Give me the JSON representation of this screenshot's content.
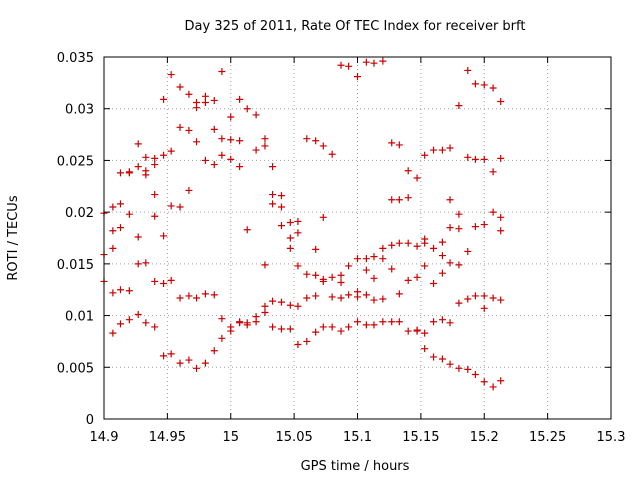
{
  "chart_data": {
    "type": "scatter",
    "title": "Day 325 of 2011, Rate Of TEC Index for receiver brft",
    "xlabel": "GPS time / hours",
    "ylabel": "ROTI / TECUs",
    "xlim": [
      14.9,
      15.3
    ],
    "ylim": [
      0,
      0.035
    ],
    "x_ticks": [
      14.9,
      14.95,
      15.0,
      15.05,
      15.1,
      15.15,
      15.2,
      15.25,
      15.3
    ],
    "x_tick_labels": [
      "14.9",
      "14.95",
      "15",
      "15.05",
      "15.1",
      "15.15",
      "15.2",
      "15.25",
      "15.3"
    ],
    "y_ticks": [
      0,
      0.005,
      0.01,
      0.015,
      0.02,
      0.025,
      0.03,
      0.035
    ],
    "y_tick_labels": [
      "0",
      "0.005",
      "0.01",
      "0.015",
      "0.02",
      "0.025",
      "0.03",
      "0.035"
    ],
    "grid": true,
    "marker": "+",
    "marker_color": "#cc0000",
    "series": [
      {
        "name": "brft",
        "points": [
          [
            14.9,
            0.0159
          ],
          [
            14.9,
            0.0199
          ],
          [
            14.9,
            0.0133
          ],
          [
            14.907,
            0.0205
          ],
          [
            14.907,
            0.0165
          ],
          [
            14.907,
            0.0182
          ],
          [
            14.907,
            0.0122
          ],
          [
            14.907,
            0.0083
          ],
          [
            14.913,
            0.0238
          ],
          [
            14.913,
            0.0208
          ],
          [
            14.913,
            0.0185
          ],
          [
            14.913,
            0.0125
          ],
          [
            14.913,
            0.0092
          ],
          [
            14.92,
            0.0239
          ],
          [
            14.92,
            0.0238
          ],
          [
            14.92,
            0.0198
          ],
          [
            14.92,
            0.0124
          ],
          [
            14.92,
            0.0096
          ],
          [
            14.927,
            0.0266
          ],
          [
            14.927,
            0.0244
          ],
          [
            14.927,
            0.0176
          ],
          [
            14.927,
            0.015
          ],
          [
            14.927,
            0.0101
          ],
          [
            14.933,
            0.0253
          ],
          [
            14.933,
            0.024
          ],
          [
            14.933,
            0.0236
          ],
          [
            14.933,
            0.0151
          ],
          [
            14.933,
            0.0093
          ],
          [
            14.94,
            0.0252
          ],
          [
            14.94,
            0.0246
          ],
          [
            14.94,
            0.0217
          ],
          [
            14.94,
            0.0196
          ],
          [
            14.94,
            0.0133
          ],
          [
            14.94,
            0.0089
          ],
          [
            14.947,
            0.0309
          ],
          [
            14.947,
            0.0255
          ],
          [
            14.947,
            0.0177
          ],
          [
            14.947,
            0.0131
          ],
          [
            14.947,
            0.0061
          ],
          [
            14.953,
            0.0333
          ],
          [
            14.953,
            0.0259
          ],
          [
            14.953,
            0.0206
          ],
          [
            14.953,
            0.0134
          ],
          [
            14.953,
            0.0063
          ],
          [
            14.96,
            0.0321
          ],
          [
            14.96,
            0.0282
          ],
          [
            14.96,
            0.0205
          ],
          [
            14.96,
            0.0117
          ],
          [
            14.96,
            0.0054
          ],
          [
            14.967,
            0.0314
          ],
          [
            14.967,
            0.0279
          ],
          [
            14.967,
            0.0221
          ],
          [
            14.967,
            0.0119
          ],
          [
            14.967,
            0.0057
          ],
          [
            14.973,
            0.0306
          ],
          [
            14.973,
            0.0301
          ],
          [
            14.973,
            0.0268
          ],
          [
            14.973,
            0.0117
          ],
          [
            14.973,
            0.0049
          ],
          [
            14.98,
            0.0312
          ],
          [
            14.98,
            0.0306
          ],
          [
            14.98,
            0.025
          ],
          [
            14.98,
            0.0121
          ],
          [
            14.98,
            0.0054
          ],
          [
            14.987,
            0.0308
          ],
          [
            14.987,
            0.028
          ],
          [
            14.987,
            0.0246
          ],
          [
            14.987,
            0.012
          ],
          [
            14.987,
            0.0066
          ],
          [
            14.993,
            0.0336
          ],
          [
            14.993,
            0.0271
          ],
          [
            14.993,
            0.0255
          ],
          [
            14.993,
            0.0097
          ],
          [
            14.993,
            0.0078
          ],
          [
            15.0,
            0.0292
          ],
          [
            15.0,
            0.027
          ],
          [
            15.0,
            0.0251
          ],
          [
            15.0,
            0.0089
          ],
          [
            15.0,
            0.0085
          ],
          [
            15.007,
            0.0309
          ],
          [
            15.007,
            0.0269
          ],
          [
            15.007,
            0.0244
          ],
          [
            15.007,
            0.0094
          ],
          [
            15.007,
            0.0093
          ],
          [
            15.013,
            0.03
          ],
          [
            15.013,
            0.0183
          ],
          [
            15.013,
            0.0093
          ],
          [
            15.013,
            0.0091
          ],
          [
            15.02,
            0.0294
          ],
          [
            15.02,
            0.026
          ],
          [
            15.02,
            0.0099
          ],
          [
            15.02,
            0.0094
          ],
          [
            15.027,
            0.0271
          ],
          [
            15.027,
            0.0264
          ],
          [
            15.027,
            0.0149
          ],
          [
            15.027,
            0.0109
          ],
          [
            15.027,
            0.0103
          ],
          [
            15.033,
            0.0244
          ],
          [
            15.033,
            0.0217
          ],
          [
            15.033,
            0.0208
          ],
          [
            15.033,
            0.0114
          ],
          [
            15.033,
            0.0089
          ],
          [
            15.04,
            0.0216
          ],
          [
            15.04,
            0.0205
          ],
          [
            15.04,
            0.0187
          ],
          [
            15.04,
            0.0113
          ],
          [
            15.04,
            0.0087
          ],
          [
            15.047,
            0.019
          ],
          [
            15.047,
            0.0175
          ],
          [
            15.047,
            0.0165
          ],
          [
            15.047,
            0.011
          ],
          [
            15.047,
            0.0087
          ],
          [
            15.053,
            0.0191
          ],
          [
            15.053,
            0.018
          ],
          [
            15.053,
            0.0148
          ],
          [
            15.053,
            0.0109
          ],
          [
            15.053,
            0.0072
          ],
          [
            15.06,
            0.0271
          ],
          [
            15.06,
            0.014
          ],
          [
            15.06,
            0.0117
          ],
          [
            15.06,
            0.0075
          ],
          [
            15.067,
            0.0269
          ],
          [
            15.067,
            0.0164
          ],
          [
            15.067,
            0.0139
          ],
          [
            15.067,
            0.0119
          ],
          [
            15.067,
            0.0084
          ],
          [
            15.073,
            0.0264
          ],
          [
            15.073,
            0.0195
          ],
          [
            15.073,
            0.0135
          ],
          [
            15.073,
            0.0133
          ],
          [
            15.073,
            0.0089
          ],
          [
            15.08,
            0.0256
          ],
          [
            15.08,
            0.0137
          ],
          [
            15.08,
            0.0118
          ],
          [
            15.08,
            0.0089
          ],
          [
            15.087,
            0.0342
          ],
          [
            15.087,
            0.0139
          ],
          [
            15.087,
            0.0132
          ],
          [
            15.087,
            0.0117
          ],
          [
            15.087,
            0.0085
          ],
          [
            15.093,
            0.0341
          ],
          [
            15.093,
            0.0148
          ],
          [
            15.093,
            0.012
          ],
          [
            15.093,
            0.0089
          ],
          [
            15.1,
            0.0331
          ],
          [
            15.1,
            0.0155
          ],
          [
            15.1,
            0.0123
          ],
          [
            15.1,
            0.0118
          ],
          [
            15.1,
            0.0094
          ],
          [
            15.107,
            0.0345
          ],
          [
            15.107,
            0.0155
          ],
          [
            15.107,
            0.0144
          ],
          [
            15.107,
            0.012
          ],
          [
            15.107,
            0.0091
          ],
          [
            15.113,
            0.0344
          ],
          [
            15.113,
            0.0157
          ],
          [
            15.113,
            0.0136
          ],
          [
            15.113,
            0.0115
          ],
          [
            15.113,
            0.0091
          ],
          [
            15.12,
            0.0346
          ],
          [
            15.12,
            0.0165
          ],
          [
            15.12,
            0.0155
          ],
          [
            15.12,
            0.0116
          ],
          [
            15.12,
            0.0094
          ],
          [
            15.127,
            0.0267
          ],
          [
            15.127,
            0.0212
          ],
          [
            15.127,
            0.0168
          ],
          [
            15.127,
            0.0145
          ],
          [
            15.127,
            0.0094
          ],
          [
            15.133,
            0.0265
          ],
          [
            15.133,
            0.0212
          ],
          [
            15.133,
            0.017
          ],
          [
            15.133,
            0.0121
          ],
          [
            15.133,
            0.0094
          ],
          [
            15.14,
            0.024
          ],
          [
            15.14,
            0.0214
          ],
          [
            15.14,
            0.017
          ],
          [
            15.14,
            0.0134
          ],
          [
            15.14,
            0.0085
          ],
          [
            15.147,
            0.0233
          ],
          [
            15.147,
            0.0167
          ],
          [
            15.147,
            0.0137
          ],
          [
            15.147,
            0.0086
          ],
          [
            15.147,
            0.0085
          ],
          [
            15.153,
            0.0255
          ],
          [
            15.153,
            0.0174
          ],
          [
            15.153,
            0.017
          ],
          [
            15.153,
            0.0148
          ],
          [
            15.153,
            0.0083
          ],
          [
            15.153,
            0.0068
          ],
          [
            15.16,
            0.026
          ],
          [
            15.16,
            0.0165
          ],
          [
            15.16,
            0.0131
          ],
          [
            15.16,
            0.0094
          ],
          [
            15.16,
            0.006
          ],
          [
            15.167,
            0.026
          ],
          [
            15.167,
            0.0171
          ],
          [
            15.167,
            0.0158
          ],
          [
            15.167,
            0.0141
          ],
          [
            15.167,
            0.0096
          ],
          [
            15.167,
            0.0058
          ],
          [
            15.173,
            0.0262
          ],
          [
            15.173,
            0.0212
          ],
          [
            15.173,
            0.0185
          ],
          [
            15.173,
            0.0151
          ],
          [
            15.173,
            0.0093
          ],
          [
            15.173,
            0.0053
          ],
          [
            15.18,
            0.0303
          ],
          [
            15.18,
            0.0198
          ],
          [
            15.18,
            0.0184
          ],
          [
            15.18,
            0.0149
          ],
          [
            15.18,
            0.0112
          ],
          [
            15.18,
            0.0049
          ],
          [
            15.187,
            0.0337
          ],
          [
            15.187,
            0.0253
          ],
          [
            15.187,
            0.0162
          ],
          [
            15.187,
            0.0116
          ],
          [
            15.187,
            0.0048
          ],
          [
            15.193,
            0.0324
          ],
          [
            15.193,
            0.0251
          ],
          [
            15.193,
            0.0186
          ],
          [
            15.193,
            0.0119
          ],
          [
            15.193,
            0.0043
          ],
          [
            15.2,
            0.0323
          ],
          [
            15.2,
            0.0251
          ],
          [
            15.2,
            0.0188
          ],
          [
            15.2,
            0.0119
          ],
          [
            15.2,
            0.0107
          ],
          [
            15.2,
            0.0036
          ],
          [
            15.207,
            0.032
          ],
          [
            15.207,
            0.0239
          ],
          [
            15.207,
            0.02
          ],
          [
            15.207,
            0.0117
          ],
          [
            15.207,
            0.0031
          ],
          [
            15.213,
            0.0307
          ],
          [
            15.213,
            0.0252
          ],
          [
            15.213,
            0.0195
          ],
          [
            15.213,
            0.0182
          ],
          [
            15.213,
            0.0115
          ],
          [
            15.213,
            0.0037
          ]
        ]
      }
    ]
  }
}
